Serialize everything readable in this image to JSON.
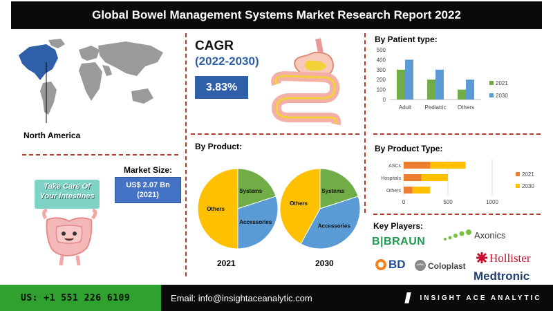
{
  "title": "Global Bowel Management Systems Market Research Report 2022",
  "region": {
    "label": "North America"
  },
  "cagr": {
    "label": "CAGR",
    "period": "(2022-2030)",
    "value": "3.83%"
  },
  "market_size": {
    "label": "Market Size:",
    "value": "US$ 2.07 Bn",
    "year": "(2021)"
  },
  "poster": {
    "line1": "Take Care Of",
    "line2": "Your Intestines"
  },
  "colors": {
    "accent_blue": "#4472c4",
    "accent_green": "#70ad47",
    "orange": "#ed7d31",
    "yellow": "#ffc000",
    "blue": "#5b9bd5",
    "green": "#70ad47",
    "navy": "#1f3f6e",
    "cagr_blue": "#2e5fa8"
  },
  "by_product": {
    "title": "By Product:",
    "labels": [
      "2021",
      "2030"
    ]
  },
  "by_patient": {
    "title": "By Patient type:"
  },
  "by_product_type": {
    "title": "By Product Type:"
  },
  "key_players": {
    "title": "Key Players:",
    "logos": [
      "B|BRAUN",
      "Axonics",
      "Hollister",
      "BD",
      "Coloplast",
      "Medtronic"
    ]
  },
  "footer": {
    "phone": "US: +1 551 226 6109",
    "email": "Email: info@insightaceanalytic.com",
    "brand": "INSIGHT ACE ANALYTIC"
  },
  "chart_data": [
    {
      "type": "bar",
      "title": "By Patient type:",
      "categories": [
        "Adult",
        "Pediatric",
        "Others"
      ],
      "series": [
        {
          "name": "2021",
          "values": [
            300,
            200,
            100
          ],
          "color": "#70ad47"
        },
        {
          "name": "2030",
          "values": [
            400,
            300,
            200
          ],
          "color": "#5b9bd5"
        }
      ],
      "ylim": [
        0,
        500
      ],
      "yticks": [
        0,
        100,
        200,
        300,
        400,
        500
      ],
      "legend": "right"
    },
    {
      "type": "bar",
      "orientation": "horizontal",
      "stacked": true,
      "title": "By Product Type:",
      "categories": [
        "ASCs",
        "Hospitals",
        "Others"
      ],
      "series": [
        {
          "name": "2021",
          "values": [
            300,
            200,
            100
          ],
          "color": "#ed7d31"
        },
        {
          "name": "2030",
          "values": [
            400,
            300,
            200
          ],
          "color": "#ffc000"
        }
      ],
      "xlim": [
        0,
        1000
      ],
      "xticks": [
        0,
        500,
        1000
      ],
      "legend": "right"
    },
    {
      "type": "pie",
      "title": "2021",
      "slices": [
        {
          "label": "Systems",
          "value": 20,
          "color": "#70ad47"
        },
        {
          "label": "Accessories",
          "value": 30,
          "color": "#5b9bd5"
        },
        {
          "label": "Others",
          "value": 50,
          "color": "#ffc000"
        }
      ]
    },
    {
      "type": "pie",
      "title": "2030",
      "slices": [
        {
          "label": "Systems",
          "value": 20,
          "color": "#70ad47"
        },
        {
          "label": "Accessories",
          "value": 38,
          "color": "#5b9bd5"
        },
        {
          "label": "Others",
          "value": 42,
          "color": "#ffc000"
        }
      ]
    }
  ]
}
